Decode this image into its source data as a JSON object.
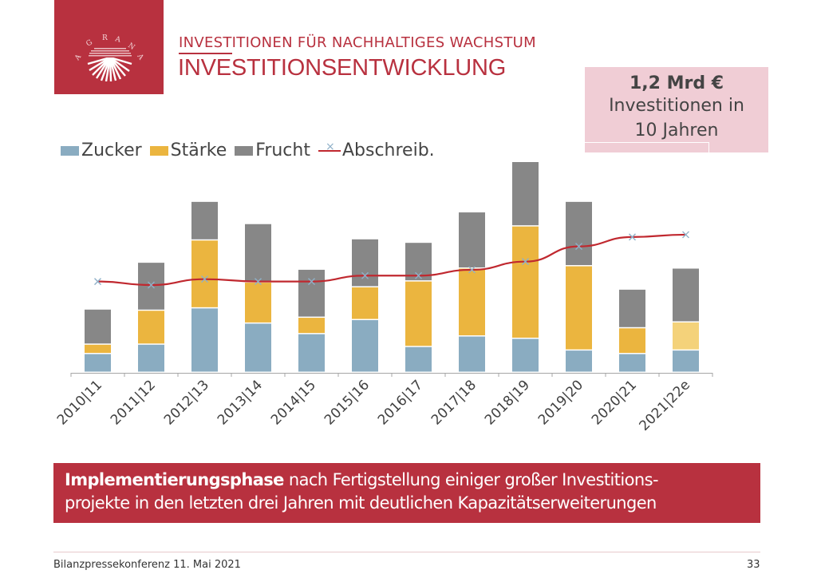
{
  "header": {
    "logo_text": "AGRANA",
    "subtitle": "INVESTITIONEN FÜR NACHHALTIGES WACHSTUM",
    "title": "INVESTITIONSENTWICKLUNG"
  },
  "callout": {
    "headline": "1,2 Mrd €",
    "line1": "Investitionen in",
    "line2": "10 Jahren"
  },
  "colors": {
    "brand_red": "#b8313f",
    "zucker": "#8aacc1",
    "staerke": "#ebb53f",
    "staerke_estimate": "#f4d27a",
    "frucht": "#878787",
    "abschreib_line": "#c0282f",
    "abschreib_marker": "#8fb0c8"
  },
  "chart_data": {
    "type": "bar",
    "stacked": true,
    "title": "",
    "xlabel": "",
    "ylabel": "",
    "unit": "€m (approx., estimated from bar heights; no axis labels shown)",
    "categories": [
      "2010|11",
      "2011|12",
      "2012|13",
      "2013|14",
      "2014|15",
      "2015|16",
      "2016|17",
      "2017|18",
      "2018|19",
      "2019|20",
      "2020|21",
      "2021|22e"
    ],
    "series": [
      {
        "name": "Zucker",
        "kind": "bar",
        "values": [
          16,
          24,
          55,
          42,
          33,
          45,
          22,
          31,
          29,
          19,
          16,
          19
        ]
      },
      {
        "name": "Stärke",
        "kind": "bar",
        "values": [
          8,
          29,
          58,
          35,
          14,
          28,
          56,
          58,
          96,
          72,
          22,
          24
        ]
      },
      {
        "name": "Frucht",
        "kind": "bar",
        "values": [
          30,
          41,
          33,
          50,
          41,
          41,
          33,
          48,
          55,
          55,
          33,
          46
        ]
      },
      {
        "name": "Abschreib.",
        "kind": "line",
        "values": [
          78,
          75,
          80,
          78,
          78,
          83,
          83,
          88,
          95,
          108,
          116,
          118
        ]
      }
    ],
    "ylim": [
      0,
      185
    ],
    "grid": false,
    "legend": "top-left",
    "estimate_category": "2021|22e"
  },
  "banner": {
    "bold": "Implementierungsphase",
    "text1": " nach Fertigstellung einiger großer Investitions-",
    "text2": "projekte in den letzten drei Jahren mit deutlichen Kapazitätserweiterungen"
  },
  "footer": {
    "event": "Bilanzpressekonferenz 11. Mai 2021",
    "page": "33"
  }
}
